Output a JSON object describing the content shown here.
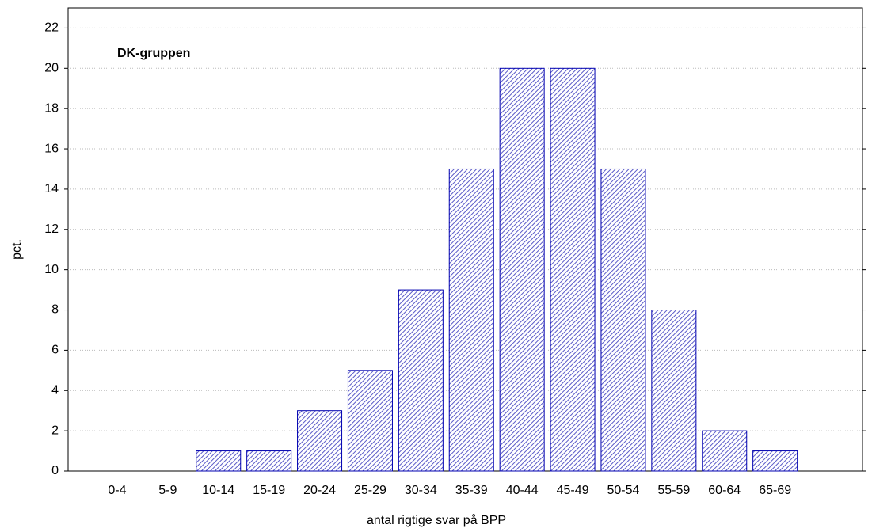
{
  "chart_data": {
    "type": "bar",
    "title": "DK-gruppen",
    "x_label": "antal rigtige svar på BPP",
    "y_label": "pct.",
    "categories": [
      "0-4",
      "5-9",
      "10-14",
      "15-19",
      "20-24",
      "25-29",
      "30-34",
      "35-39",
      "40-44",
      "45-49",
      "50-54",
      "55-59",
      "60-64",
      "65-69",
      null
    ],
    "values": [
      0,
      0,
      1,
      1,
      3,
      5,
      9,
      15,
      20,
      20,
      15,
      8,
      2,
      1,
      0
    ],
    "color": "#0000b0",
    "ylim": [
      0,
      23
    ],
    "yticks": [
      0,
      2,
      4,
      6,
      8,
      10,
      12,
      14,
      16,
      18,
      20,
      22
    ],
    "grid": true
  }
}
